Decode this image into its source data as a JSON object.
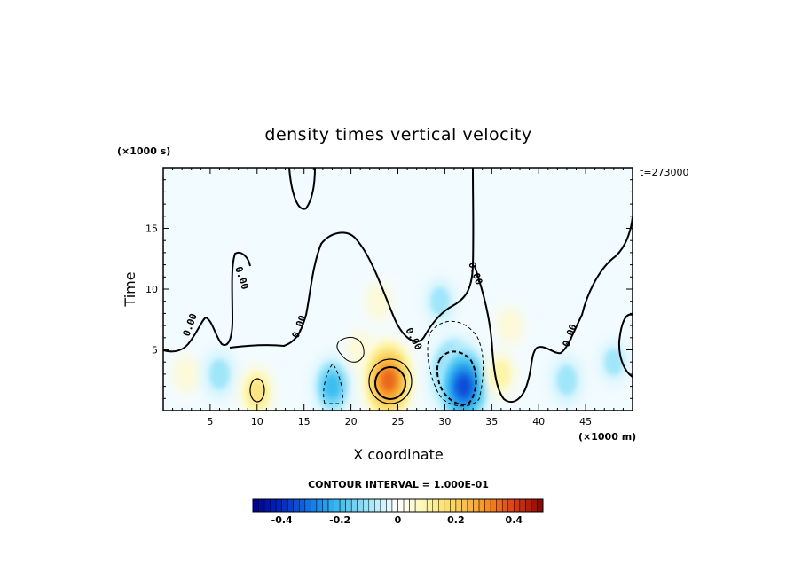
{
  "chart_data": {
    "type": "heatmap",
    "title": "density times vertical velocity",
    "xlabel": "X coordinate",
    "ylabel": "Time",
    "x_unit_label": "(×1000 m)",
    "y_unit_label": "(×1000 s)",
    "time_stamp": "t=273000",
    "xlim": [
      0,
      50
    ],
    "ylim": [
      0,
      20
    ],
    "x_ticks": [
      5,
      10,
      15,
      20,
      25,
      30,
      35,
      40,
      45
    ],
    "x_tick_labels": [
      "5",
      "10",
      "15",
      "20",
      "25",
      "30",
      "35",
      "40",
      "45"
    ],
    "y_ticks": [
      5,
      10,
      15
    ],
    "y_tick_labels": [
      "5",
      "10",
      "15"
    ],
    "contour_interval_text": "CONTOUR INTERVAL = 1.000E-01",
    "zero_contour_label": "0.00",
    "colorbar": {
      "range": [
        -0.5,
        0.5
      ],
      "ticks": [
        -0.4,
        -0.2,
        0,
        0.2,
        0.4
      ],
      "tick_labels": [
        "-0.4",
        "-0.2",
        "0",
        "0.2",
        "0.4"
      ]
    },
    "features": [
      {
        "x": 2.5,
        "t": 3.0,
        "value": 0.05
      },
      {
        "x": 6.0,
        "t": 3.0,
        "value": -0.12
      },
      {
        "x": 10.0,
        "t": 1.5,
        "value": 0.15
      },
      {
        "x": 18.0,
        "t": 2.0,
        "value": -0.2
      },
      {
        "x": 21.0,
        "t": 5.0,
        "value": 0.05
      },
      {
        "x": 23.0,
        "t": 9.0,
        "value": 0.05
      },
      {
        "x": 24.0,
        "t": 2.5,
        "value": 0.35
      },
      {
        "x": 29.5,
        "t": 9.0,
        "value": -0.1
      },
      {
        "x": 31.0,
        "t": 3.0,
        "value": -0.3
      },
      {
        "x": 32.0,
        "t": 2.0,
        "value": -0.35
      },
      {
        "x": 37.0,
        "t": 7.0,
        "value": 0.05
      },
      {
        "x": 36.0,
        "t": 3.0,
        "value": 0.1
      },
      {
        "x": 43.0,
        "t": 2.5,
        "value": -0.12
      },
      {
        "x": 48.0,
        "t": 4.0,
        "value": -0.08
      }
    ]
  }
}
